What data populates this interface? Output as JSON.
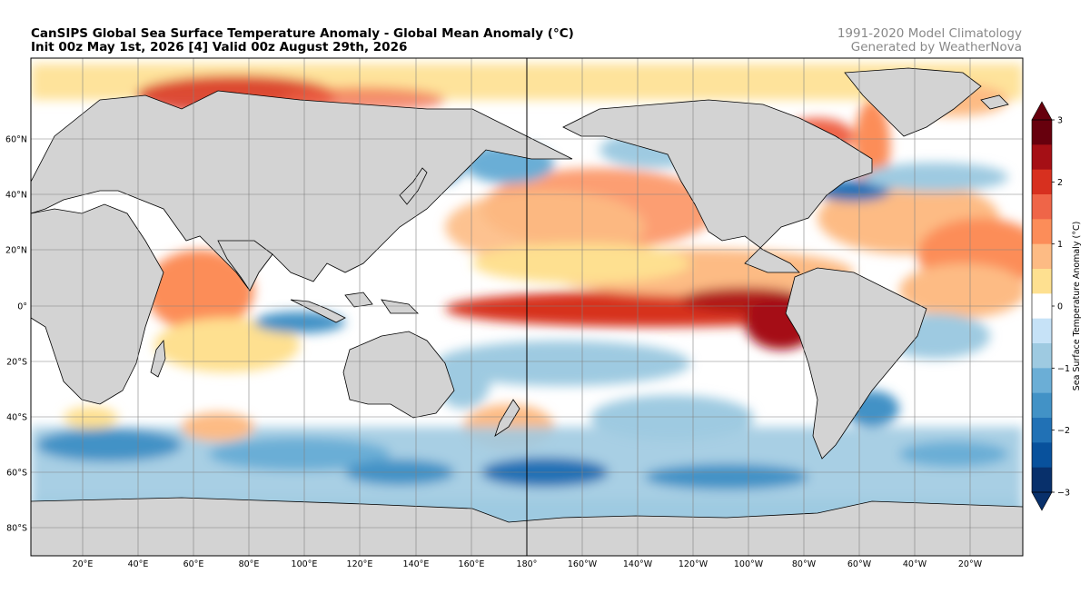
{
  "title_line1": "CanSIPS Global Sea Surface Temperature Anomaly - Global Mean Anomaly (°C)",
  "title_line2": "Init 00z May 1st, 2026 [4] Valid 00z August 29th, 2026",
  "credit_line1": "1991-2020 Model Climatology",
  "credit_line2": "Generated by WeatherNova",
  "lat_labels": [
    "60°N",
    "40°N",
    "20°N",
    "0°",
    "20°S",
    "40°S",
    "60°S",
    "80°S"
  ],
  "lon_labels": [
    "20°E",
    "40°E",
    "60°E",
    "80°E",
    "100°E",
    "120°E",
    "140°E",
    "160°E",
    "180°",
    "160°W",
    "140°W",
    "120°W",
    "100°W",
    "80°W",
    "60°W",
    "40°W",
    "20°W"
  ],
  "colorbar": {
    "label": "Sea Surface Temperature Anomaly (°C)",
    "ticks": [
      "3",
      "2",
      "1",
      "0",
      "−1",
      "−2",
      "−3"
    ],
    "colors_top_to_bottom": [
      "#67000d",
      "#a50f15",
      "#d7301f",
      "#ef6548",
      "#fc8d59",
      "#fdbb84",
      "#fee090",
      "#ffffff",
      "#c6e2f7",
      "#9ecae1",
      "#6baed6",
      "#4292c6",
      "#2171b5",
      "#08519c",
      "#08306b"
    ]
  },
  "colors": {
    "land": "#d3d3d3",
    "ocean_neutral": "#ffffff",
    "warm": "#e34a33",
    "cool": "#4292c6",
    "grid": "#808080"
  }
}
